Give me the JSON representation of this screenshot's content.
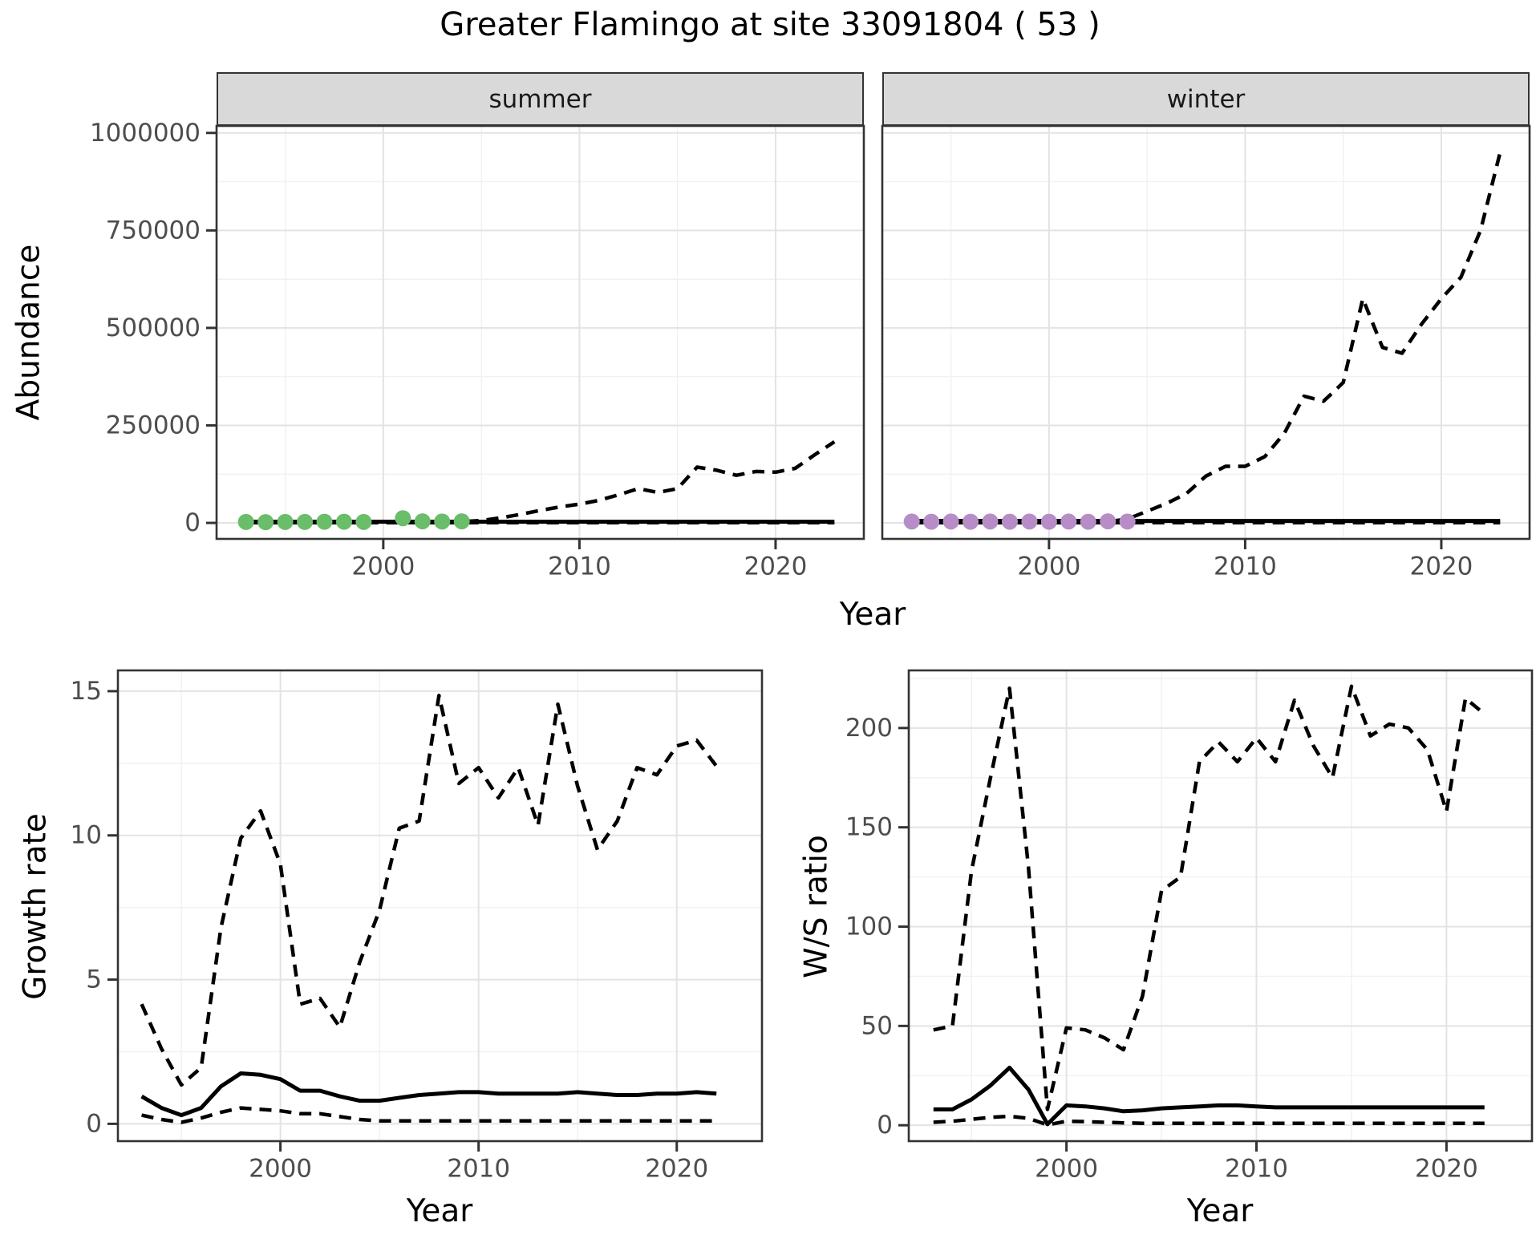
{
  "title": "Greater Flamingo at site 33091804 ( 53 )",
  "labels": {
    "abundance": "Abundance",
    "year": "Year",
    "growth_rate": "Growth rate",
    "ws_ratio": "W/S ratio"
  },
  "facets": [
    {
      "label": "summer"
    },
    {
      "label": "winter"
    }
  ],
  "colors": {
    "background": "#ffffff",
    "panel_bg": "#ffffff",
    "panel_border": "#333333",
    "strip_bg": "#d9d9d9",
    "grid_major": "#e3e3e3",
    "grid_minor": "#f1f1f1",
    "line": "#000000",
    "tick": "#333333",
    "tick_label": "#4d4d4d",
    "summer_points": "#6abd69",
    "winter_points": "#b78dc8"
  },
  "chart_data": [
    {
      "id": "summer_abundance",
      "type": "line",
      "facet": "summer",
      "xlabel": "Year",
      "ylabel": "Abundance",
      "xlim": [
        1991.5,
        2024.5
      ],
      "ylim": [
        -41000,
        1018000
      ],
      "xticks": {
        "values": [
          2000,
          2010,
          2020
        ],
        "labels": [
          "2000",
          "2010",
          "2020"
        ]
      },
      "yticks": {
        "values": [
          0,
          250000,
          500000,
          750000,
          1000000
        ],
        "labels": [
          "0",
          "250000",
          "500000",
          "750000",
          "1000000"
        ]
      },
      "xminor": [
        1995,
        2005,
        2015
      ],
      "yminor": [
        125000,
        375000,
        625000,
        875000
      ],
      "x": [
        1993,
        1994,
        1995,
        1996,
        1997,
        1998,
        1999,
        2000,
        2001,
        2002,
        2003,
        2004,
        2005,
        2006,
        2007,
        2008,
        2009,
        2010,
        2011,
        2012,
        2013,
        2014,
        2015,
        2016,
        2017,
        2018,
        2019,
        2020,
        2021,
        2022,
        2023
      ],
      "series": [
        {
          "name": "upper_ci",
          "style": "dashed",
          "values": [
            1500,
            1500,
            1500,
            2000,
            2000,
            2000,
            2000,
            2000,
            2500,
            2500,
            3000,
            3500,
            6000,
            13000,
            22000,
            32000,
            41000,
            48000,
            58000,
            72000,
            88000,
            78000,
            88000,
            143000,
            135000,
            122000,
            132000,
            130000,
            140000,
            175000,
            208000
          ]
        },
        {
          "name": "fit",
          "style": "solid",
          "values": [
            3000,
            3000,
            3000,
            3000,
            3000,
            3000,
            3000,
            3000,
            3000,
            3000,
            3000,
            3000,
            3000,
            3000,
            3000,
            3000,
            3000,
            3000,
            3000,
            3000,
            3000,
            3000,
            3000,
            3000,
            3000,
            3000,
            3000,
            3000,
            3000,
            3000,
            3000
          ]
        },
        {
          "name": "lower_ci",
          "style": "dashed",
          "values": [
            600,
            600,
            600,
            600,
            600,
            600,
            600,
            600,
            600,
            600,
            600,
            600,
            600,
            600,
            600,
            600,
            600,
            600,
            600,
            600,
            600,
            600,
            600,
            600,
            600,
            600,
            600,
            600,
            600,
            600,
            600
          ]
        }
      ],
      "points": {
        "name": "summer-count-point",
        "color": "#6abd69",
        "x": [
          1993,
          1994,
          1995,
          1996,
          1997,
          1998,
          1999,
          2001,
          2002,
          2003,
          2004
        ],
        "y": [
          2500,
          2000,
          2500,
          2500,
          3000,
          3000,
          2500,
          12000,
          4000,
          3500,
          4000
        ]
      }
    },
    {
      "id": "winter_abundance",
      "type": "line",
      "facet": "winter",
      "xlabel": "Year",
      "ylabel": "Abundance",
      "xlim": [
        1991.5,
        2024.5
      ],
      "ylim": [
        -41000,
        1018000
      ],
      "xticks": {
        "values": [
          2000,
          2010,
          2020
        ],
        "labels": [
          "2000",
          "2010",
          "2020"
        ]
      },
      "yticks": {
        "values": [
          0,
          250000,
          500000,
          750000,
          1000000
        ],
        "labels": [
          "0",
          "250000",
          "500000",
          "750000",
          "1000000"
        ]
      },
      "xminor": [
        1995,
        2005,
        2015
      ],
      "yminor": [
        125000,
        375000,
        625000,
        875000
      ],
      "x": [
        1993,
        1994,
        1995,
        1996,
        1997,
        1998,
        1999,
        2000,
        2001,
        2002,
        2003,
        2004,
        2005,
        2006,
        2007,
        2008,
        2009,
        2010,
        2011,
        2012,
        2013,
        2014,
        2015,
        2016,
        2017,
        2018,
        2019,
        2020,
        2021,
        2022,
        2023
      ],
      "series": [
        {
          "name": "upper_ci",
          "style": "dashed",
          "values": [
            1500,
            1500,
            1500,
            1500,
            1500,
            1500,
            1500,
            1500,
            1500,
            1500,
            3000,
            10000,
            30000,
            50000,
            75000,
            120000,
            145000,
            145000,
            170000,
            230000,
            325000,
            312000,
            360000,
            575000,
            450000,
            435000,
            510000,
            575000,
            630000,
            750000,
            950000
          ]
        },
        {
          "name": "fit",
          "style": "solid",
          "values": [
            5000,
            5000,
            5000,
            5000,
            5000,
            5000,
            5000,
            5000,
            5000,
            5000,
            5000,
            5000,
            5000,
            5000,
            5000,
            5000,
            5000,
            5000,
            5000,
            5000,
            5000,
            5000,
            5000,
            5000,
            5000,
            5000,
            5000,
            5000,
            5000,
            5000,
            5000
          ]
        },
        {
          "name": "lower_ci",
          "style": "dashed",
          "values": [
            800,
            800,
            800,
            800,
            800,
            800,
            800,
            800,
            800,
            800,
            800,
            800,
            800,
            800,
            800,
            800,
            800,
            800,
            800,
            800,
            800,
            800,
            800,
            800,
            800,
            800,
            800,
            800,
            800,
            800,
            800
          ]
        }
      ],
      "points": {
        "name": "winter-count-point",
        "color": "#b78dc8",
        "x": [
          1993,
          1994,
          1995,
          1996,
          1997,
          1998,
          1999,
          2000,
          2001,
          2002,
          2003,
          2004
        ],
        "y": [
          3500,
          3000,
          3500,
          3000,
          3500,
          3000,
          3500,
          3000,
          3500,
          3000,
          4000,
          3500
        ]
      }
    },
    {
      "id": "growth_rate",
      "type": "line",
      "xlabel": "Year",
      "ylabel": "Growth rate",
      "xlim": [
        1991.8,
        2024.3
      ],
      "ylim": [
        -0.6,
        15.72
      ],
      "xticks": {
        "values": [
          2000,
          2010,
          2020
        ],
        "labels": [
          "2000",
          "2010",
          "2020"
        ]
      },
      "yticks": {
        "values": [
          0,
          5,
          10,
          15
        ],
        "labels": [
          "0",
          "5",
          "10",
          "15"
        ]
      },
      "xminor": [
        1995,
        2005,
        2015
      ],
      "yminor": [
        2.5,
        7.5,
        12.5
      ],
      "x": [
        1993,
        1994,
        1995,
        1996,
        1997,
        1998,
        1999,
        2000,
        2001,
        2002,
        2003,
        2004,
        2005,
        2006,
        2007,
        2008,
        2009,
        2010,
        2011,
        2012,
        2013,
        2014,
        2015,
        2016,
        2017,
        2018,
        2019,
        2020,
        2021,
        2022
      ],
      "series": [
        {
          "name": "upper_ci",
          "style": "dashed",
          "values": [
            4.15,
            2.6,
            1.35,
            1.95,
            6.8,
            9.9,
            10.85,
            9.0,
            4.15,
            4.35,
            3.35,
            5.6,
            7.4,
            10.25,
            10.5,
            14.85,
            11.8,
            12.35,
            11.3,
            12.35,
            10.35,
            14.55,
            11.7,
            9.5,
            10.5,
            12.35,
            12.1,
            13.1,
            13.3,
            12.4
          ]
        },
        {
          "name": "fit",
          "style": "solid",
          "values": [
            0.95,
            0.55,
            0.3,
            0.55,
            1.3,
            1.75,
            1.7,
            1.55,
            1.15,
            1.15,
            0.95,
            0.8,
            0.8,
            0.9,
            1.0,
            1.05,
            1.1,
            1.1,
            1.05,
            1.05,
            1.05,
            1.05,
            1.1,
            1.05,
            1.0,
            1.0,
            1.05,
            1.05,
            1.1,
            1.05
          ]
        },
        {
          "name": "lower_ci",
          "style": "dashed",
          "values": [
            0.3,
            0.15,
            0.05,
            0.2,
            0.4,
            0.55,
            0.5,
            0.45,
            0.35,
            0.35,
            0.25,
            0.15,
            0.1,
            0.1,
            0.1,
            0.1,
            0.1,
            0.1,
            0.1,
            0.1,
            0.1,
            0.1,
            0.1,
            0.1,
            0.1,
            0.1,
            0.1,
            0.1,
            0.1,
            0.1
          ]
        }
      ]
    },
    {
      "id": "ws_ratio",
      "type": "line",
      "xlabel": "Year",
      "ylabel": "W/S ratio",
      "xlim": [
        1991.7,
        2024.5
      ],
      "ylim": [
        -8,
        229
      ],
      "xticks": {
        "values": [
          2000,
          2010,
          2020
        ],
        "labels": [
          "2000",
          "2010",
          "2020"
        ]
      },
      "yticks": {
        "values": [
          0,
          50,
          100,
          150,
          200
        ],
        "labels": [
          "0",
          "50",
          "100",
          "150",
          "200"
        ]
      },
      "xminor": [
        1995,
        2005,
        2015
      ],
      "yminor": [
        25,
        75,
        125,
        175,
        225
      ],
      "x": [
        1993,
        1994,
        1995,
        1996,
        1997,
        1998,
        1999,
        2000,
        2001,
        2002,
        2003,
        2004,
        2005,
        2006,
        2007,
        2008,
        2009,
        2010,
        2011,
        2012,
        2013,
        2014,
        2015,
        2016,
        2017,
        2018,
        2019,
        2020,
        2021,
        2022
      ],
      "series": [
        {
          "name": "upper_ci",
          "style": "dashed",
          "values": [
            48,
            50,
            128,
            175,
            220,
            130,
            8,
            49,
            48,
            44,
            38,
            65,
            118,
            125,
            183,
            193,
            183,
            195,
            183,
            214,
            191,
            175,
            221,
            196,
            202,
            200,
            189,
            158,
            215,
            207
          ]
        },
        {
          "name": "fit",
          "style": "solid",
          "values": [
            8,
            8,
            13,
            20,
            29,
            18,
            0.5,
            10,
            9.5,
            8.5,
            7,
            7.5,
            8.5,
            9,
            9.5,
            10,
            10,
            9.5,
            9,
            9,
            9,
            9,
            9,
            9,
            9,
            9,
            9,
            9,
            9,
            9
          ]
        },
        {
          "name": "lower_ci",
          "style": "dashed",
          "values": [
            1.5,
            2,
            3,
            4,
            4.5,
            3.5,
            0.2,
            2,
            1.8,
            1.5,
            1.2,
            1,
            1,
            1,
            1,
            1,
            1,
            1,
            1,
            1,
            1,
            1,
            1,
            1,
            1,
            1,
            1,
            1,
            1,
            1
          ]
        }
      ]
    }
  ]
}
